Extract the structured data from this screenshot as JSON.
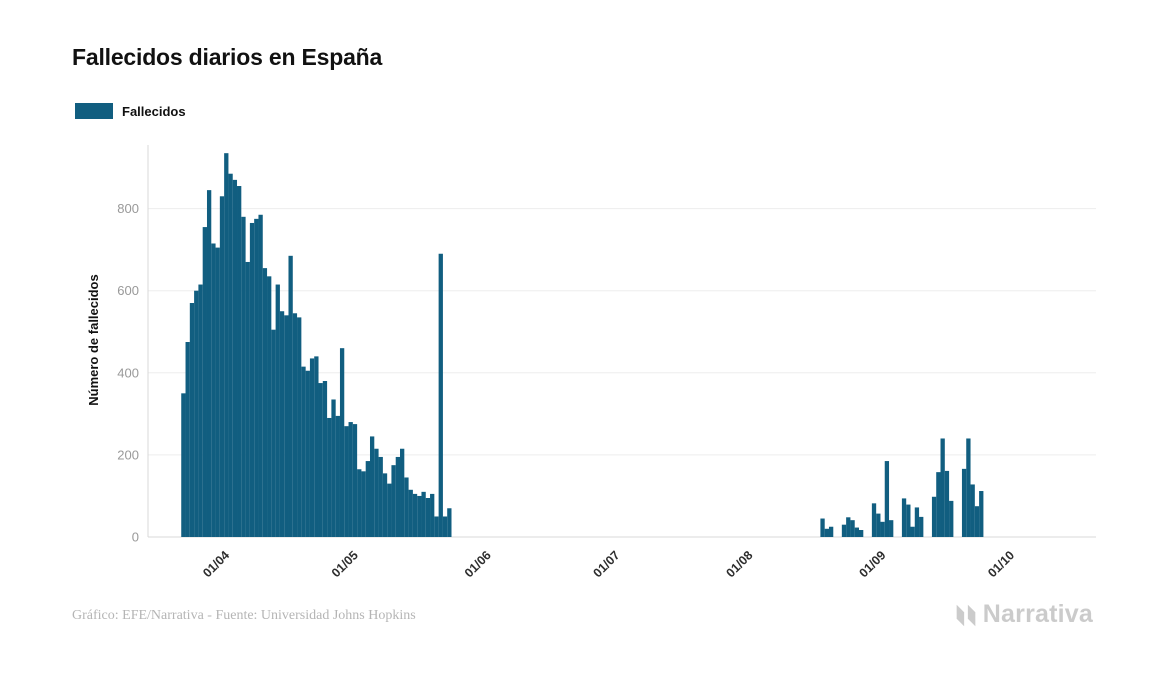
{
  "chart": {
    "title": "Fallecidos diarios en España",
    "legend_label": "Fallecidos"
  },
  "footer": {
    "credit": "Gráfico: EFE/Narrativa - Fuente: Universidad Johns Hopkins",
    "logo_text": "Narrativa"
  },
  "colors": {
    "bar": "#115e80",
    "gridline": "#ededed",
    "axis_line": "#d8d8d8",
    "y_tick_label": "#999999",
    "x_tick_label": "#2e2e2e",
    "axis_title": "#111111",
    "credit_text": "#b5b5b5",
    "logo_gray": "#cbcbcb"
  },
  "chart_data": {
    "type": "bar",
    "title": "Fallecidos diarios en España",
    "xlabel": "",
    "ylabel": "Número de fallecidos",
    "legend": [
      "Fallecidos"
    ],
    "legend_position": "top-left",
    "grid": true,
    "ylim": [
      0,
      960
    ],
    "yticks": [
      0,
      200,
      400,
      600,
      800
    ],
    "xticks": [
      "01/04",
      "01/05",
      "01/06",
      "01/07",
      "01/08",
      "01/09",
      "01/10"
    ],
    "series_name": "Fallecidos",
    "points": [
      {
        "date": "23/03",
        "value": 350
      },
      {
        "date": "24/03",
        "value": 475
      },
      {
        "date": "25/03",
        "value": 570
      },
      {
        "date": "26/03",
        "value": 600
      },
      {
        "date": "27/03",
        "value": 615
      },
      {
        "date": "28/03",
        "value": 755
      },
      {
        "date": "29/03",
        "value": 845
      },
      {
        "date": "30/03",
        "value": 715
      },
      {
        "date": "31/03",
        "value": 705
      },
      {
        "date": "01/04",
        "value": 830
      },
      {
        "date": "02/04",
        "value": 935
      },
      {
        "date": "03/04",
        "value": 885
      },
      {
        "date": "04/04",
        "value": 870
      },
      {
        "date": "05/04",
        "value": 855
      },
      {
        "date": "06/04",
        "value": 780
      },
      {
        "date": "07/04",
        "value": 670
      },
      {
        "date": "08/04",
        "value": 765
      },
      {
        "date": "09/04",
        "value": 775
      },
      {
        "date": "10/04",
        "value": 785
      },
      {
        "date": "11/04",
        "value": 655
      },
      {
        "date": "12/04",
        "value": 635
      },
      {
        "date": "13/04",
        "value": 505
      },
      {
        "date": "14/04",
        "value": 615
      },
      {
        "date": "15/04",
        "value": 550
      },
      {
        "date": "16/04",
        "value": 540
      },
      {
        "date": "17/04",
        "value": 685
      },
      {
        "date": "18/04",
        "value": 545
      },
      {
        "date": "19/04",
        "value": 535
      },
      {
        "date": "20/04",
        "value": 415
      },
      {
        "date": "21/04",
        "value": 405
      },
      {
        "date": "22/04",
        "value": 435
      },
      {
        "date": "23/04",
        "value": 440
      },
      {
        "date": "24/04",
        "value": 375
      },
      {
        "date": "25/04",
        "value": 380
      },
      {
        "date": "26/04",
        "value": 290
      },
      {
        "date": "27/04",
        "value": 335
      },
      {
        "date": "28/04",
        "value": 295
      },
      {
        "date": "29/04",
        "value": 460
      },
      {
        "date": "30/04",
        "value": 270
      },
      {
        "date": "01/05",
        "value": 280
      },
      {
        "date": "02/05",
        "value": 275
      },
      {
        "date": "03/05",
        "value": 165
      },
      {
        "date": "04/05",
        "value": 160
      },
      {
        "date": "05/05",
        "value": 185
      },
      {
        "date": "06/05",
        "value": 245
      },
      {
        "date": "07/05",
        "value": 215
      },
      {
        "date": "08/05",
        "value": 195
      },
      {
        "date": "09/05",
        "value": 155
      },
      {
        "date": "10/05",
        "value": 130
      },
      {
        "date": "11/05",
        "value": 175
      },
      {
        "date": "12/05",
        "value": 195
      },
      {
        "date": "13/05",
        "value": 215
      },
      {
        "date": "14/05",
        "value": 145
      },
      {
        "date": "15/05",
        "value": 115
      },
      {
        "date": "16/05",
        "value": 105
      },
      {
        "date": "17/05",
        "value": 100
      },
      {
        "date": "18/05",
        "value": 110
      },
      {
        "date": "19/05",
        "value": 95
      },
      {
        "date": "20/05",
        "value": 105
      },
      {
        "date": "21/05",
        "value": 50
      },
      {
        "date": "22/05",
        "value": 690
      },
      {
        "date": "23/05",
        "value": 50
      },
      {
        "date": "24/05",
        "value": 70
      },
      {
        "date": "19/08",
        "value": 45
      },
      {
        "date": "20/08",
        "value": 20
      },
      {
        "date": "21/08",
        "value": 25
      },
      {
        "date": "24/08",
        "value": 30
      },
      {
        "date": "25/08",
        "value": 48
      },
      {
        "date": "26/08",
        "value": 41
      },
      {
        "date": "27/08",
        "value": 23
      },
      {
        "date": "28/08",
        "value": 17
      },
      {
        "date": "31/08",
        "value": 82
      },
      {
        "date": "01/09",
        "value": 57
      },
      {
        "date": "02/09",
        "value": 37
      },
      {
        "date": "03/09",
        "value": 185
      },
      {
        "date": "04/09",
        "value": 41
      },
      {
        "date": "07/09",
        "value": 94
      },
      {
        "date": "08/09",
        "value": 79
      },
      {
        "date": "09/09",
        "value": 25
      },
      {
        "date": "10/09",
        "value": 72
      },
      {
        "date": "11/09",
        "value": 49
      },
      {
        "date": "14/09",
        "value": 98
      },
      {
        "date": "15/09",
        "value": 158
      },
      {
        "date": "16/09",
        "value": 240
      },
      {
        "date": "17/09",
        "value": 161
      },
      {
        "date": "18/09",
        "value": 88
      },
      {
        "date": "21/09",
        "value": 166
      },
      {
        "date": "22/09",
        "value": 240
      },
      {
        "date": "23/09",
        "value": 128
      },
      {
        "date": "24/09",
        "value": 75
      },
      {
        "date": "25/09",
        "value": 112
      }
    ]
  }
}
